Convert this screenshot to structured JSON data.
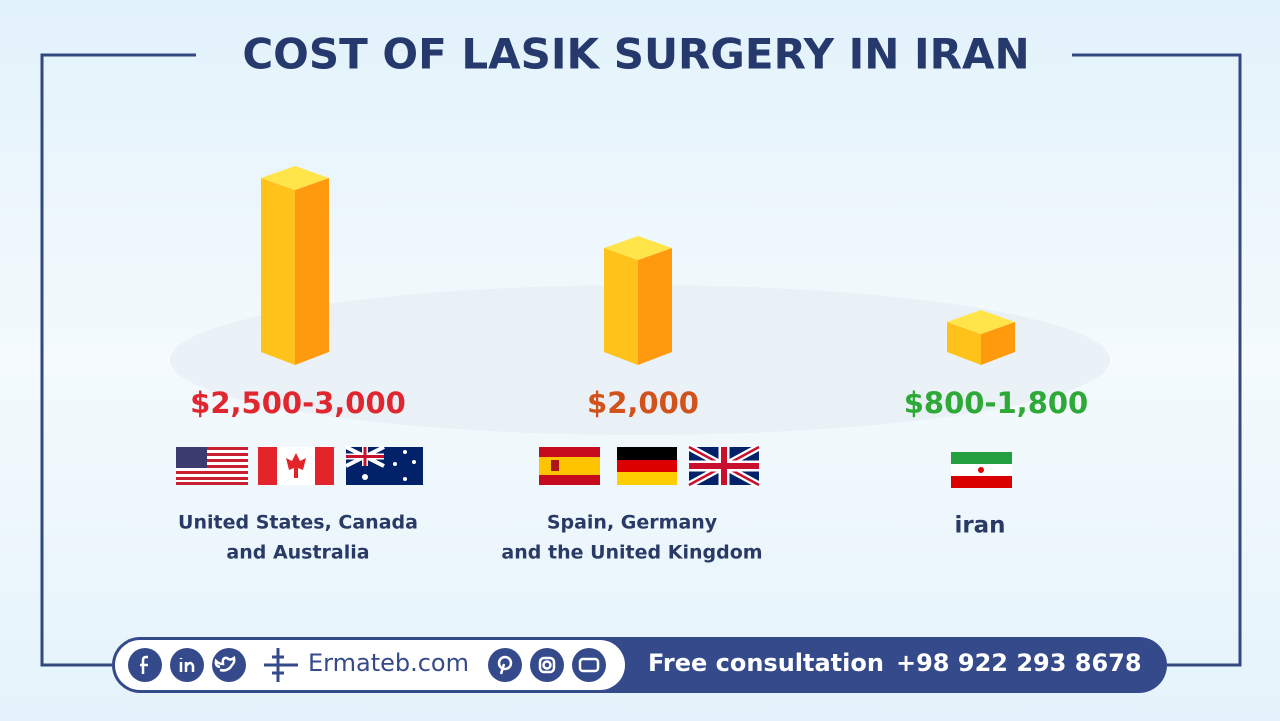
{
  "title": "COST OF LASIK SURGERY IN IRAN",
  "groups": [
    {
      "price": "$2,500-3,000",
      "countries": [
        "United States, Canada",
        "and Australia"
      ]
    },
    {
      "price": "$2,000",
      "countries": [
        "Spain, Germany",
        "and the United Kingdom"
      ]
    },
    {
      "price": "$800-1,800",
      "countries": [
        "iran"
      ]
    }
  ],
  "footer": {
    "site": "Ermateb.com",
    "consultation": "Free consultation",
    "phone": "+98 922 293 8678"
  }
}
